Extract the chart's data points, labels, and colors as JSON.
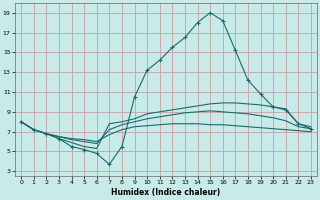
{
  "xlabel": "Humidex (Indice chaleur)",
  "bg_color": "#c8eae8",
  "grid_color": "#c8a0a0",
  "line_color": "#1a6b6b",
  "xlim": [
    -0.5,
    23.5
  ],
  "ylim": [
    2.5,
    20
  ],
  "yticks": [
    3,
    5,
    7,
    9,
    11,
    13,
    15,
    17,
    19
  ],
  "xticks": [
    0,
    1,
    2,
    3,
    4,
    5,
    6,
    7,
    8,
    9,
    10,
    11,
    12,
    13,
    14,
    15,
    16,
    17,
    18,
    19,
    20,
    21,
    22,
    23
  ],
  "line1_x": [
    0,
    1,
    2,
    3,
    4,
    5,
    6,
    7,
    8,
    9,
    10,
    11,
    12,
    13,
    14,
    15,
    16,
    17,
    18,
    19,
    20,
    21,
    22,
    23
  ],
  "line1_y": [
    8.0,
    7.2,
    6.8,
    6.3,
    5.5,
    5.2,
    4.8,
    3.7,
    5.5,
    10.5,
    13.2,
    14.2,
    15.5,
    16.5,
    18.0,
    19.0,
    18.2,
    15.2,
    12.2,
    10.8,
    9.5,
    9.2,
    7.8,
    7.3
  ],
  "line2_x": [
    0,
    1,
    2,
    3,
    4,
    5,
    6,
    7,
    8,
    9,
    10,
    11,
    12,
    13,
    14,
    15,
    16,
    17,
    18,
    19,
    20,
    21,
    22,
    23
  ],
  "line2_y": [
    8.0,
    7.2,
    6.8,
    6.3,
    5.9,
    5.5,
    5.3,
    7.8,
    8.0,
    8.3,
    8.8,
    9.0,
    9.2,
    9.4,
    9.6,
    9.8,
    9.9,
    9.9,
    9.8,
    9.7,
    9.5,
    9.3,
    7.8,
    7.5
  ],
  "line3_x": [
    0,
    1,
    2,
    3,
    4,
    5,
    6,
    7,
    8,
    9,
    10,
    11,
    12,
    13,
    14,
    15,
    16,
    17,
    18,
    19,
    20,
    21,
    22,
    23
  ],
  "line3_y": [
    8.0,
    7.2,
    6.8,
    6.5,
    6.2,
    6.0,
    5.8,
    7.2,
    7.7,
    8.0,
    8.3,
    8.5,
    8.7,
    8.9,
    9.0,
    9.1,
    9.0,
    8.9,
    8.8,
    8.6,
    8.4,
    8.1,
    7.5,
    7.3
  ],
  "line4_x": [
    0,
    1,
    2,
    3,
    4,
    5,
    6,
    7,
    8,
    9,
    10,
    11,
    12,
    13,
    14,
    15,
    16,
    17,
    18,
    19,
    20,
    21,
    22,
    23
  ],
  "line4_y": [
    8.0,
    7.2,
    6.8,
    6.5,
    6.3,
    6.2,
    6.0,
    6.7,
    7.2,
    7.5,
    7.6,
    7.7,
    7.8,
    7.8,
    7.8,
    7.7,
    7.7,
    7.6,
    7.5,
    7.4,
    7.3,
    7.2,
    7.1,
    7.0
  ]
}
